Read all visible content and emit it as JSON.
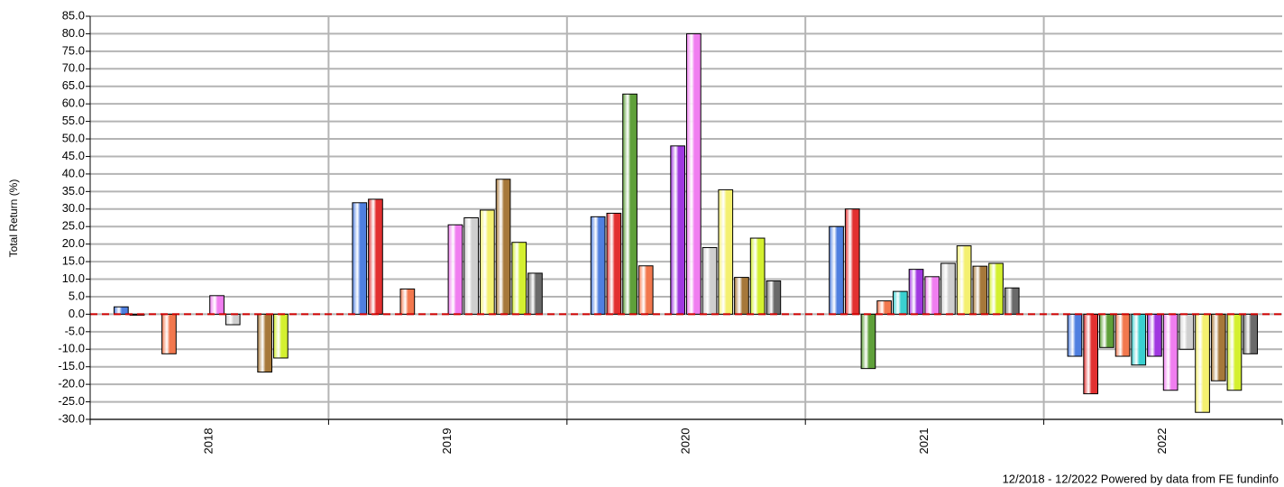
{
  "chart_data": {
    "type": "bar",
    "y_label": "Total Return (%)",
    "footer": "12/2018 - 12/2022 Powered by data from FE fundinfo",
    "categories": [
      "2018",
      "2019",
      "2020",
      "2021",
      "2022"
    ],
    "series": [
      {
        "color": "#4f7fe0",
        "values": [
          2.1,
          31.8,
          27.8,
          25.0,
          -12.0
        ]
      },
      {
        "color": "#e23030",
        "values": [
          -0.3,
          32.8,
          28.8,
          30.0,
          -22.7
        ]
      },
      {
        "color": "#5fa03a",
        "values": [
          null,
          null,
          62.8,
          -15.5,
          -9.5
        ]
      },
      {
        "color": "#f2784e",
        "values": [
          -11.3,
          7.2,
          13.8,
          3.8,
          -12.0
        ]
      },
      {
        "color": "#3ad0d0",
        "values": [
          null,
          null,
          null,
          6.5,
          -14.5
        ]
      },
      {
        "color": "#a038e0",
        "values": [
          null,
          null,
          48.0,
          12.8,
          -12.0
        ]
      },
      {
        "color": "#f07ef0",
        "values": [
          5.3,
          25.5,
          80.0,
          10.7,
          -21.7
        ]
      },
      {
        "color": "#cfcfcf",
        "values": [
          -3.0,
          27.5,
          19.0,
          14.5,
          -10.0
        ]
      },
      {
        "color": "#f4f070",
        "values": [
          null,
          29.7,
          35.5,
          19.5,
          -28.0
        ]
      },
      {
        "color": "#a6783a",
        "values": [
          -16.5,
          38.5,
          10.5,
          13.7,
          -19.0
        ]
      },
      {
        "color": "#d4f030",
        "values": [
          -12.5,
          20.5,
          21.7,
          14.5,
          -21.7
        ]
      },
      {
        "color": "#6a6a6a",
        "values": [
          null,
          11.7,
          9.5,
          7.5,
          -11.3
        ]
      }
    ],
    "ylim": [
      -30,
      85
    ],
    "yticks": [
      {
        "value": -30,
        "label": "-30.0"
      },
      {
        "value": -25,
        "label": "-25.0"
      },
      {
        "value": -20,
        "label": "-20.0"
      },
      {
        "value": -15,
        "label": "-15.0"
      },
      {
        "value": -10,
        "label": "-10.0"
      },
      {
        "value": -5,
        "label": "-5.0"
      },
      {
        "value": 0,
        "label": "0.0"
      },
      {
        "value": 5,
        "label": "5.0"
      },
      {
        "value": 10,
        "label": "10.0"
      },
      {
        "value": 15,
        "label": "15.0"
      },
      {
        "value": 20,
        "label": "20.0"
      },
      {
        "value": 25,
        "label": "25.0"
      },
      {
        "value": 30,
        "label": "30.0"
      },
      {
        "value": 35,
        "label": "35.0"
      },
      {
        "value": 40,
        "label": "40.0"
      },
      {
        "value": 45,
        "label": "45.0"
      },
      {
        "value": 50,
        "label": "50.0"
      },
      {
        "value": 55,
        "label": "55.0"
      },
      {
        "value": 60,
        "label": "60.0"
      },
      {
        "value": 65,
        "label": "65.0"
      },
      {
        "value": 70,
        "label": "70.0"
      },
      {
        "value": 75,
        "label": "75.0"
      },
      {
        "value": 80,
        "label": "80.0"
      },
      {
        "value": 85,
        "label": "85.0"
      }
    ],
    "grid": true
  }
}
